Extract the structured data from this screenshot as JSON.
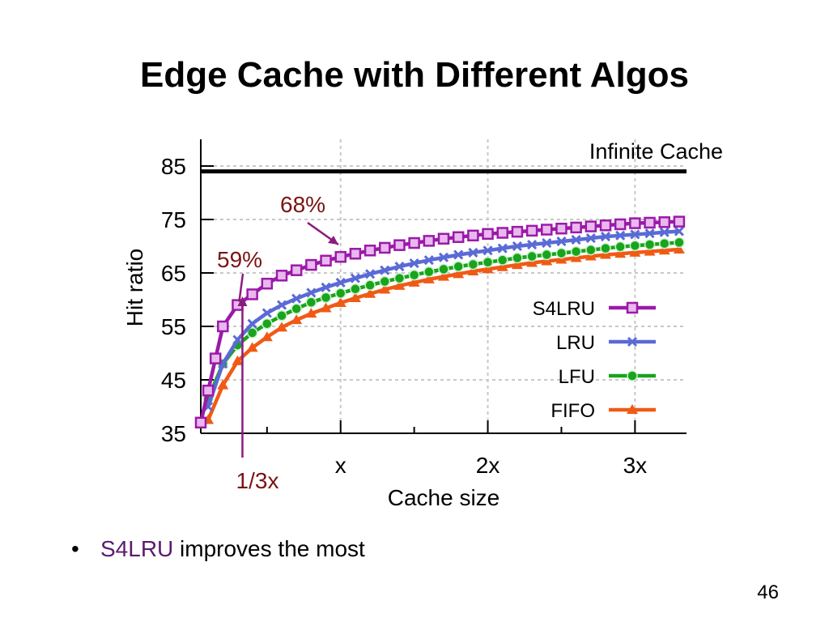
{
  "slide": {
    "title": "Edge Cache with Different Algos",
    "bullet_highlight": "S4LRU",
    "bullet_rest": " improves the most",
    "page_number": "46"
  },
  "colors": {
    "s4lru": "#9b1aa8",
    "lru": "#5a6ad6",
    "lfu": "#18a41c",
    "fifo": "#f05a14",
    "annotation": "#7a1414",
    "annotation_arrow": "#8a1c7e",
    "accent_text": "#5a1a6e"
  },
  "chart_data": {
    "type": "line",
    "xlabel": "Cache size",
    "ylabel": "Hit ratio",
    "ylim": [
      35,
      85
    ],
    "yticks": [
      35,
      45,
      55,
      65,
      75,
      85
    ],
    "xlim": [
      0,
      3.3
    ],
    "xticks": [
      {
        "value": 1,
        "label": "x"
      },
      {
        "value": 2,
        "label": "2x"
      },
      {
        "value": 3,
        "label": "3x"
      }
    ],
    "grid": true,
    "legend_position": "right",
    "reference_line": {
      "label": "Infinite Cache",
      "value": 84
    },
    "annotations": [
      {
        "text": "59%",
        "x": 0.333,
        "y": 59
      },
      {
        "text": "68%",
        "x": 1.0,
        "y": 68
      },
      {
        "text": "1/3x",
        "x": 0.333
      }
    ],
    "series": [
      {
        "name": "S4LRU",
        "marker": "square",
        "x": [
          0.05,
          0.1,
          0.15,
          0.2,
          0.3,
          0.4,
          0.5,
          0.6,
          0.7,
          0.8,
          0.9,
          1.0,
          1.1,
          1.2,
          1.3,
          1.4,
          1.5,
          1.6,
          1.7,
          1.8,
          1.9,
          2.0,
          2.1,
          2.2,
          2.3,
          2.4,
          2.5,
          2.6,
          2.7,
          2.8,
          2.9,
          3.0,
          3.1,
          3.2,
          3.3
        ],
        "values": [
          37,
          43,
          49,
          55,
          59,
          61,
          63,
          64.5,
          65.5,
          66.5,
          67.3,
          68,
          68.6,
          69.2,
          69.7,
          70.2,
          70.6,
          71,
          71.4,
          71.7,
          72,
          72.3,
          72.5,
          72.7,
          72.9,
          73.1,
          73.3,
          73.5,
          73.7,
          73.9,
          74.1,
          74.3,
          74.4,
          74.5,
          74.6
        ]
      },
      {
        "name": "LRU",
        "marker": "x",
        "x": [
          0.1,
          0.2,
          0.3,
          0.4,
          0.5,
          0.6,
          0.7,
          0.8,
          0.9,
          1.0,
          1.1,
          1.2,
          1.3,
          1.4,
          1.5,
          1.6,
          1.7,
          1.8,
          1.9,
          2.0,
          2.1,
          2.2,
          2.3,
          2.4,
          2.5,
          2.6,
          2.7,
          2.8,
          2.9,
          3.0,
          3.1,
          3.2,
          3.3
        ],
        "values": [
          40,
          48,
          52.5,
          55.5,
          57.5,
          59,
          60.2,
          61.3,
          62.3,
          63.2,
          64,
          64.8,
          65.5,
          66.2,
          66.8,
          67.4,
          67.9,
          68.4,
          68.8,
          69.2,
          69.6,
          70,
          70.3,
          70.6,
          70.9,
          71.2,
          71.5,
          71.8,
          72,
          72.2,
          72.4,
          72.6,
          72.8
        ]
      },
      {
        "name": "LFU",
        "marker": "circle",
        "x": [
          0.1,
          0.2,
          0.3,
          0.4,
          0.5,
          0.6,
          0.7,
          0.8,
          0.9,
          1.0,
          1.1,
          1.2,
          1.3,
          1.4,
          1.5,
          1.6,
          1.7,
          1.8,
          1.9,
          2.0,
          2.1,
          2.2,
          2.3,
          2.4,
          2.5,
          2.6,
          2.7,
          2.8,
          2.9,
          3.0,
          3.1,
          3.2,
          3.3
        ],
        "values": [
          41.5,
          48,
          51.5,
          53.8,
          55.5,
          57,
          58.3,
          59.5,
          60.4,
          61.2,
          62,
          62.7,
          63.4,
          64,
          64.6,
          65.2,
          65.7,
          66.2,
          66.6,
          67,
          67.4,
          67.8,
          68.1,
          68.4,
          68.7,
          69,
          69.3,
          69.6,
          69.9,
          70.1,
          70.3,
          70.5,
          70.7
        ]
      },
      {
        "name": "FIFO",
        "marker": "triangle",
        "x": [
          0.1,
          0.2,
          0.3,
          0.4,
          0.5,
          0.6,
          0.7,
          0.8,
          0.9,
          1.0,
          1.1,
          1.2,
          1.3,
          1.4,
          1.5,
          1.6,
          1.7,
          1.8,
          1.9,
          2.0,
          2.1,
          2.2,
          2.3,
          2.4,
          2.5,
          2.6,
          2.7,
          2.8,
          2.9,
          3.0,
          3.1,
          3.2,
          3.3
        ],
        "values": [
          37.5,
          44,
          48.5,
          51,
          53,
          54.8,
          56.2,
          57.4,
          58.4,
          59.4,
          60.3,
          61.1,
          61.9,
          62.6,
          63.2,
          63.8,
          64.3,
          64.8,
          65.3,
          65.7,
          66.1,
          66.5,
          66.9,
          67.2,
          67.5,
          67.8,
          68.1,
          68.4,
          68.6,
          68.8,
          69,
          69.2,
          69.4
        ]
      }
    ]
  }
}
